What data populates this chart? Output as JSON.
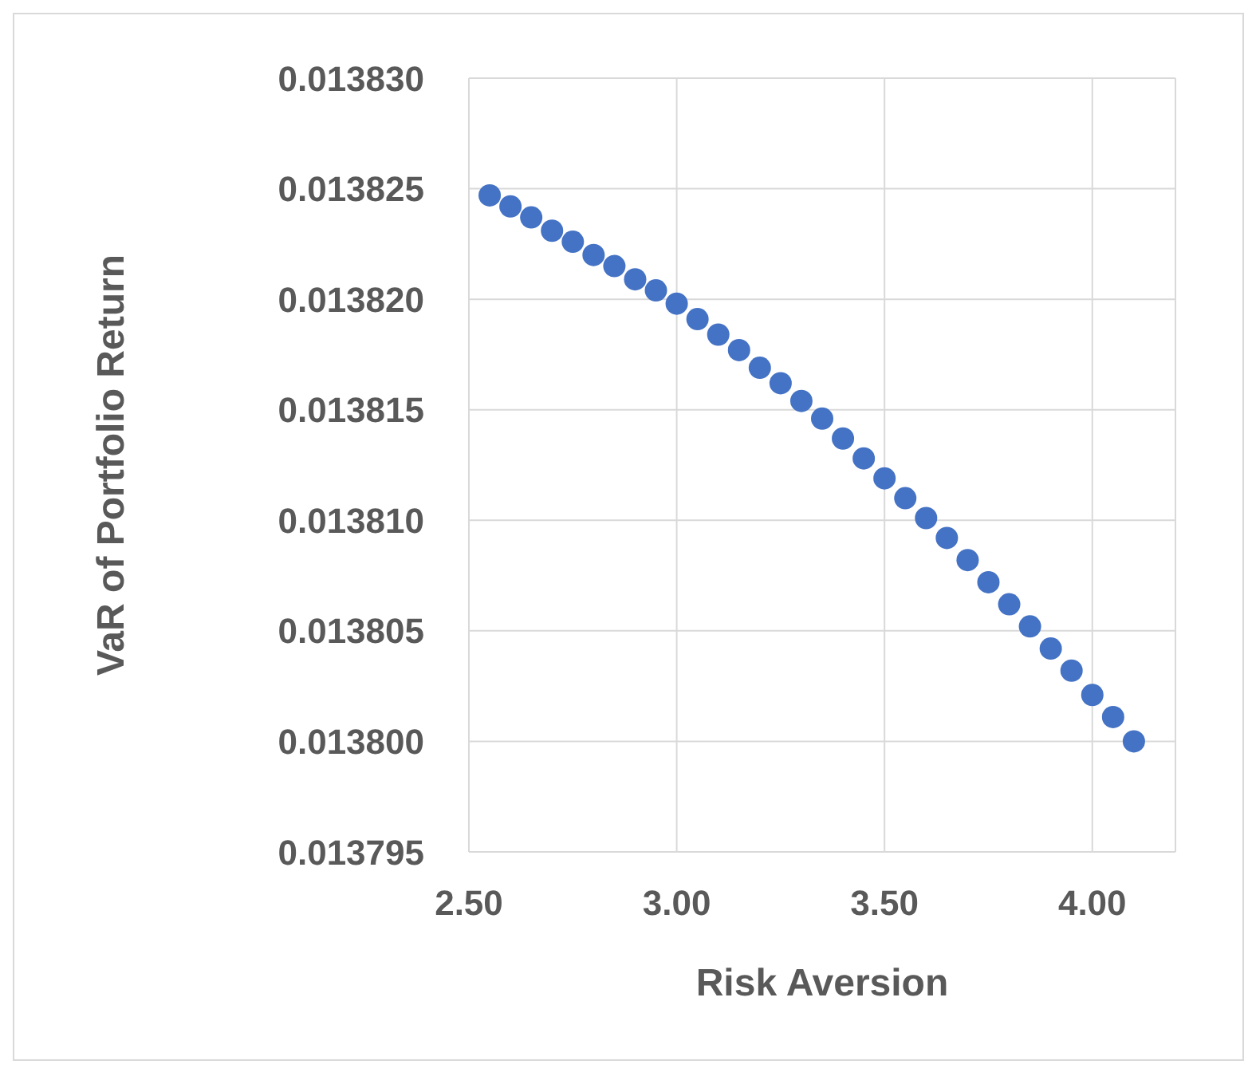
{
  "chart_data": {
    "type": "scatter",
    "xlabel": "Risk Aversion",
    "ylabel": "VaR of Portfolio Return",
    "marker": "circle",
    "grid": true,
    "x": [
      2.55,
      2.6,
      2.65,
      2.7,
      2.75,
      2.8,
      2.85,
      2.9,
      2.95,
      3.0,
      3.05,
      3.1,
      3.15,
      3.2,
      3.25,
      3.3,
      3.35,
      3.4,
      3.45,
      3.5,
      3.55,
      3.6,
      3.65,
      3.7,
      3.75,
      3.8,
      3.85,
      3.9,
      3.95,
      4.0,
      4.05,
      4.1
    ],
    "series": [
      {
        "color": "#4472c4",
        "values": [
          0.0138247,
          0.0138242,
          0.0138237,
          0.0138231,
          0.0138226,
          0.013822,
          0.0138215,
          0.0138209,
          0.0138204,
          0.0138198,
          0.0138191,
          0.0138184,
          0.0138177,
          0.0138169,
          0.0138162,
          0.0138154,
          0.0138146,
          0.0138137,
          0.0138128,
          0.0138119,
          0.013811,
          0.0138101,
          0.0138092,
          0.0138082,
          0.0138072,
          0.0138062,
          0.0138052,
          0.0138042,
          0.0138032,
          0.0138021,
          0.0138011,
          0.0138
        ]
      }
    ],
    "xlim": [
      2.5,
      4.2
    ],
    "xticks": [
      {
        "value": 2.5,
        "label": "2.50"
      },
      {
        "value": 3,
        "label": "3.00"
      },
      {
        "value": 3.5,
        "label": "3.50"
      },
      {
        "value": 4,
        "label": "4.00"
      }
    ],
    "ylim": [
      0.013795,
      0.01383
    ],
    "yticks": [
      {
        "value": 0.013795,
        "label": "0.013795"
      },
      {
        "value": 0.0138,
        "label": "0.013800"
      },
      {
        "value": 0.013805,
        "label": "0.013805"
      },
      {
        "value": 0.01381,
        "label": "0.013810"
      },
      {
        "value": 0.013815,
        "label": "0.013815"
      },
      {
        "value": 0.01382,
        "label": "0.013820"
      },
      {
        "value": 0.013825,
        "label": "0.013825"
      },
      {
        "value": 0.01383,
        "label": "0.013830"
      }
    ]
  }
}
